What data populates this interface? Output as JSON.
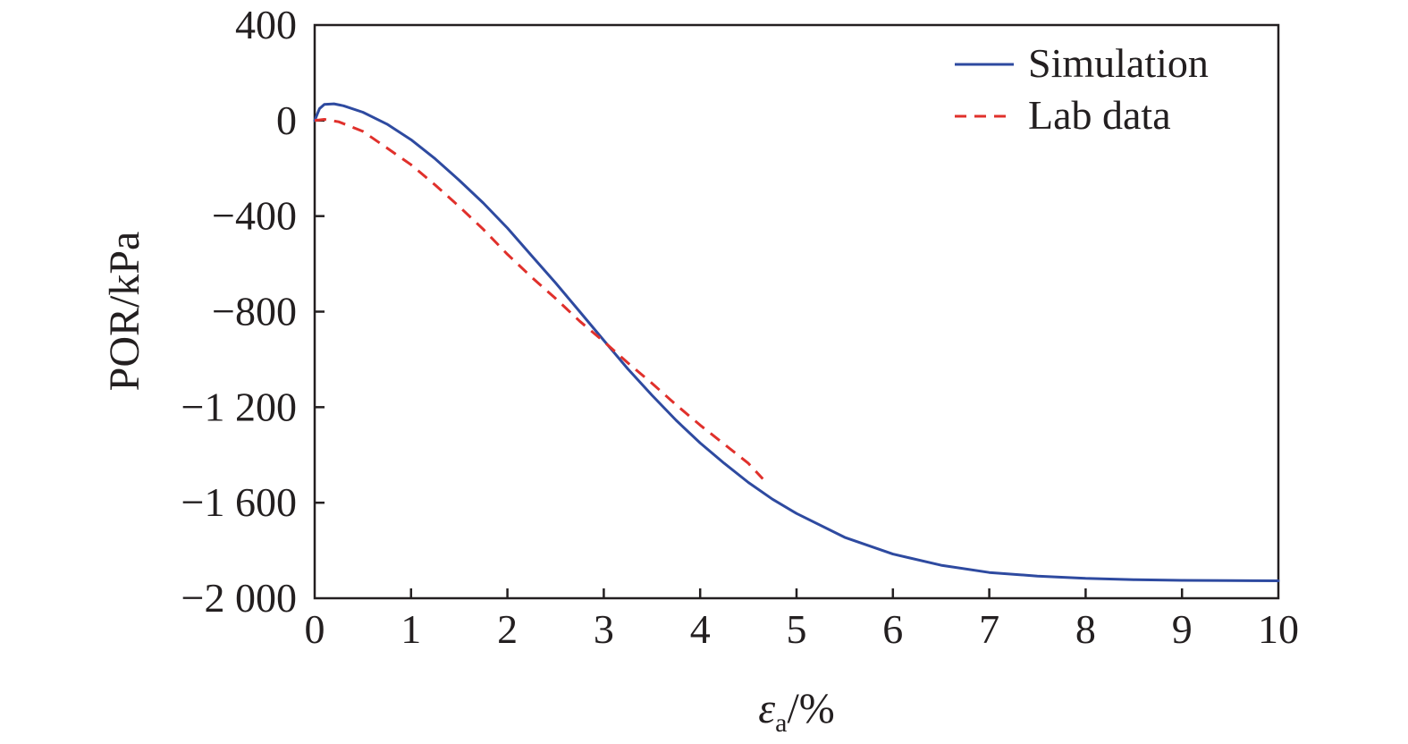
{
  "chart_data": {
    "type": "line",
    "xlabel": {
      "symbol": "ε",
      "subscript": "a",
      "unit": "/%"
    },
    "ylabel": "POR/kPa",
    "xlim": [
      0,
      10
    ],
    "ylim": [
      -2000,
      400
    ],
    "x_ticks": [
      0,
      1,
      2,
      3,
      4,
      5,
      6,
      7,
      8,
      9,
      10
    ],
    "y_ticks": [
      400,
      0,
      -400,
      -800,
      -1200,
      -1600,
      -2000
    ],
    "y_tick_labels": [
      "400",
      "0",
      "−400",
      "−800",
      "−1 200",
      "−1 600",
      "−2 000"
    ],
    "legend_position": "top-right",
    "grid": false,
    "series": [
      {
        "name": "Simulation",
        "color": "#2e4aa0",
        "style": "solid",
        "x": [
          0,
          0.05,
          0.1,
          0.2,
          0.3,
          0.5,
          0.75,
          1.0,
          1.25,
          1.5,
          1.75,
          2.0,
          2.25,
          2.5,
          2.75,
          3.0,
          3.25,
          3.5,
          3.75,
          4.0,
          4.25,
          4.5,
          4.75,
          5.0,
          5.5,
          6.0,
          6.5,
          7.0,
          7.5,
          8.0,
          8.5,
          9.0,
          9.5,
          10.0
        ],
        "y": [
          0,
          50,
          68,
          70,
          62,
          35,
          -15,
          -80,
          -160,
          -250,
          -345,
          -450,
          -565,
          -680,
          -800,
          -920,
          -1040,
          -1150,
          -1255,
          -1350,
          -1435,
          -1515,
          -1585,
          -1645,
          -1745,
          -1815,
          -1862,
          -1892,
          -1907,
          -1917,
          -1922,
          -1925,
          -1926,
          -1927
        ]
      },
      {
        "name": "Lab data",
        "color": "#e0302b",
        "style": "dashed",
        "x": [
          0,
          0.1,
          0.25,
          0.5,
          0.75,
          1.0,
          1.25,
          1.5,
          1.75,
          2.0,
          2.25,
          2.5,
          2.75,
          3.0,
          3.25,
          3.5,
          3.75,
          4.0,
          4.25,
          4.5,
          4.65
        ],
        "y": [
          0,
          5,
          -5,
          -45,
          -115,
          -185,
          -270,
          -360,
          -455,
          -560,
          -655,
          -745,
          -840,
          -925,
          -1015,
          -1100,
          -1190,
          -1275,
          -1355,
          -1435,
          -1500
        ]
      }
    ]
  }
}
